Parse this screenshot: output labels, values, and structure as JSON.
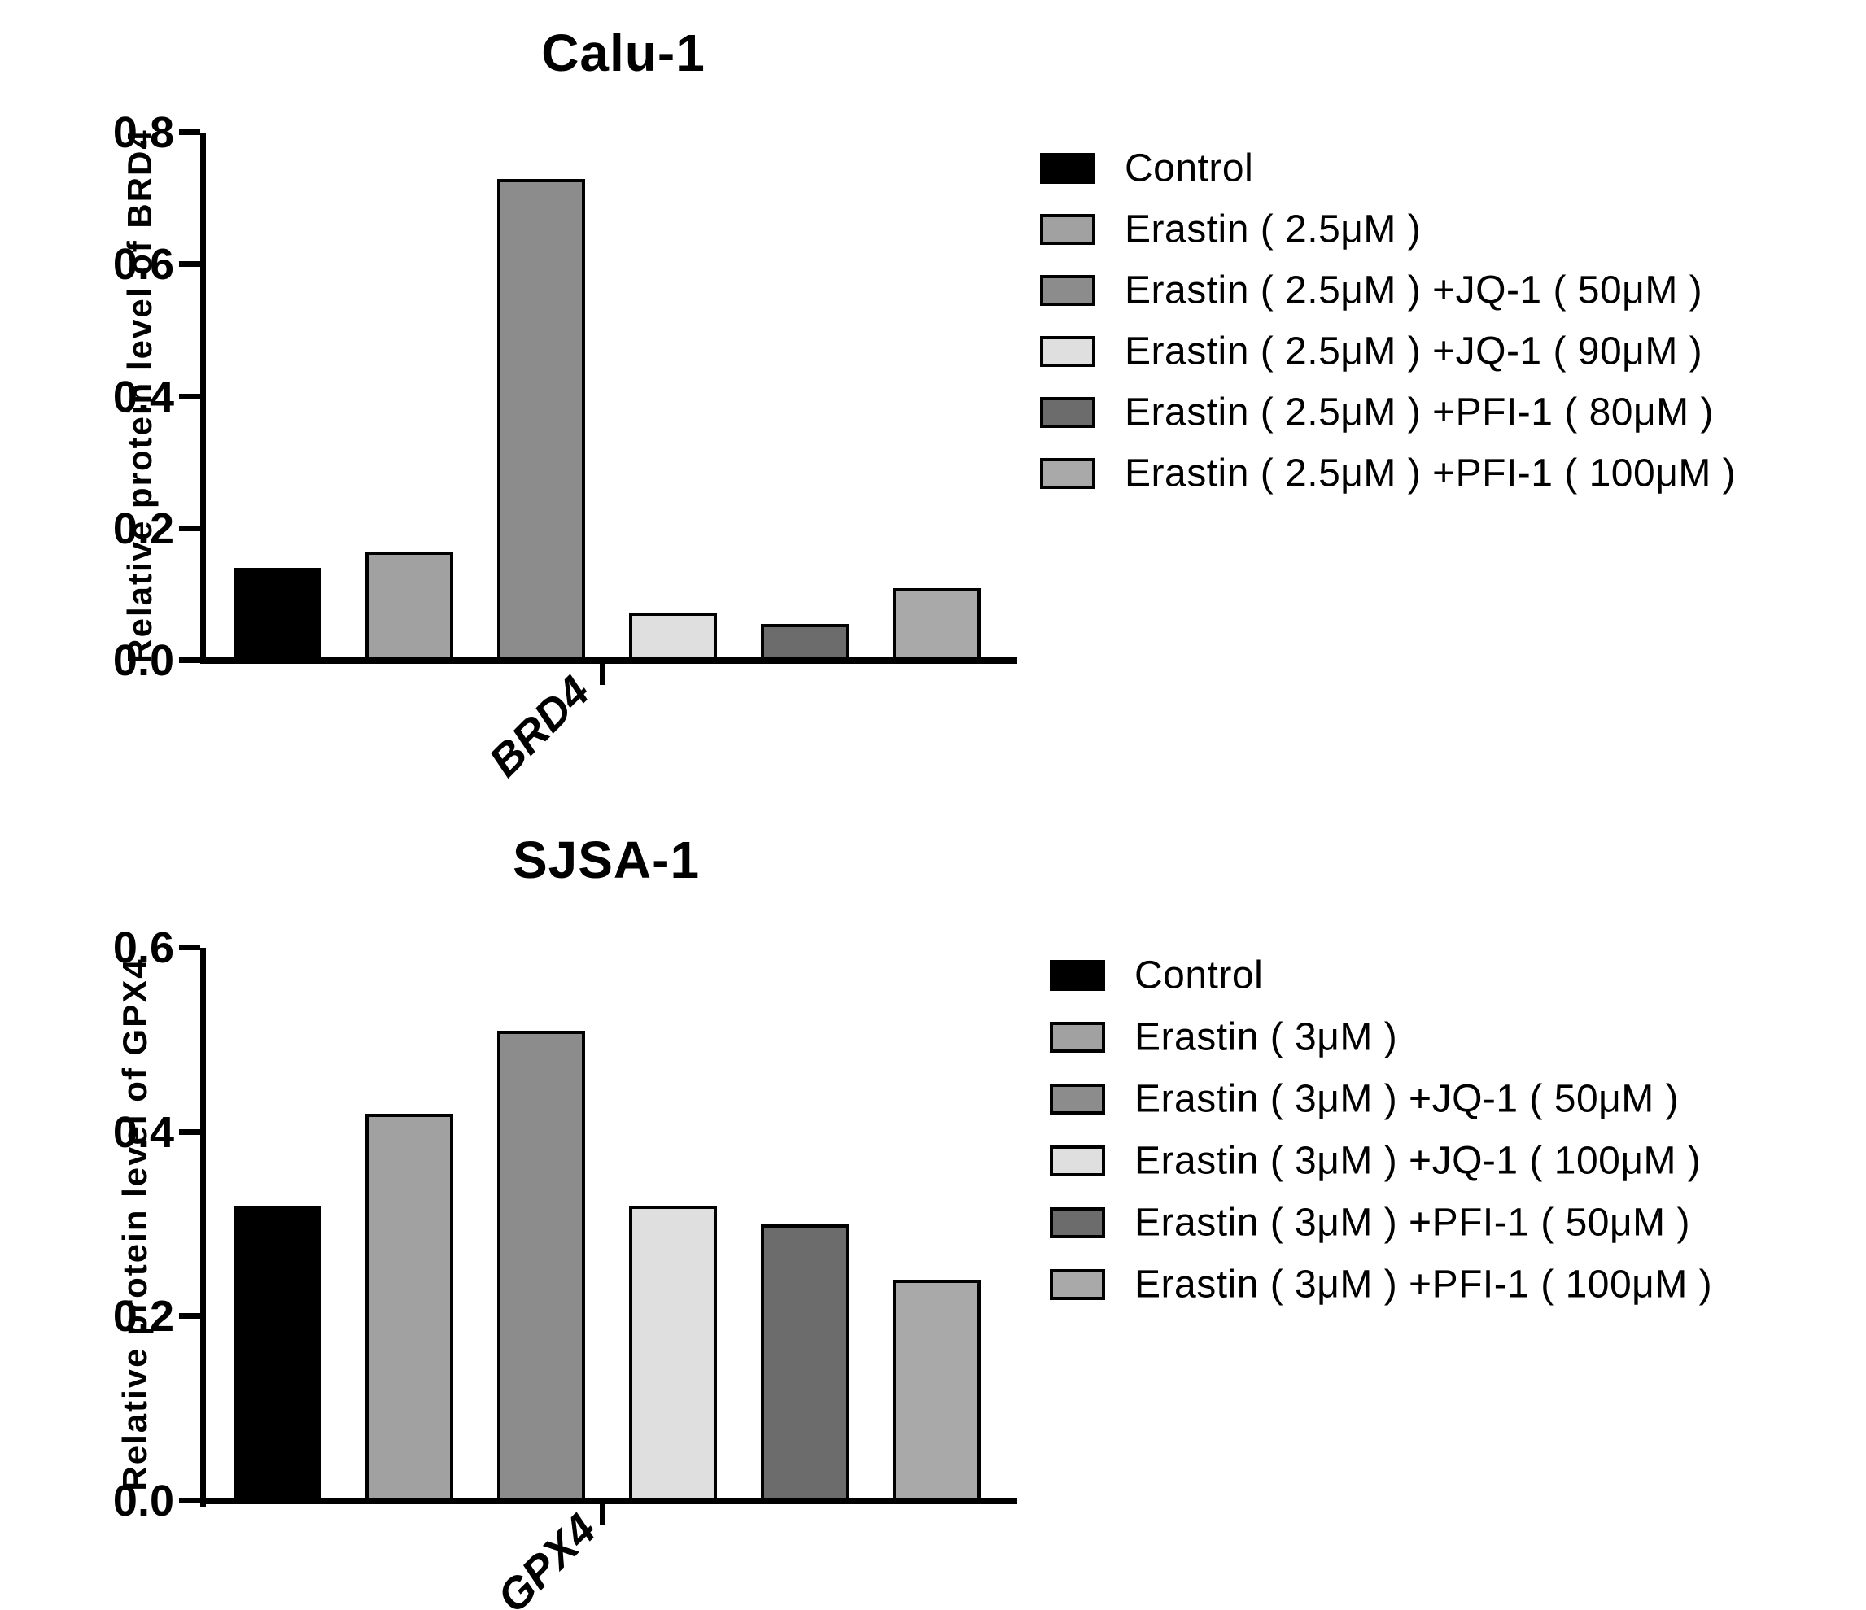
{
  "chart_data": [
    {
      "type": "bar",
      "title": "Calu-1",
      "ylabel": "Relative protein level of BRD4",
      "xlabel": "",
      "categories": [
        "BRD4"
      ],
      "ylim": [
        0,
        0.8
      ],
      "yticks": [
        "0.0",
        "0.2",
        "0.4",
        "0.6",
        "0.8"
      ],
      "grid": false,
      "legend_position": "right",
      "series": [
        {
          "name": "Control",
          "values": [
            0.14
          ],
          "color": "#000000"
        },
        {
          "name": "Erastin ( 2.5μM )",
          "values": [
            0.165
          ],
          "color": "#A1A1A1"
        },
        {
          "name": "Erastin ( 2.5μM ) +JQ-1 ( 50μM )",
          "values": [
            0.73
          ],
          "color": "#8C8C8C"
        },
        {
          "name": "Erastin ( 2.5μM ) +JQ-1 ( 90μM )",
          "values": [
            0.073
          ],
          "color": "#DFDFDF"
        },
        {
          "name": "Erastin ( 2.5μM ) +PFI-1 ( 80μM )",
          "values": [
            0.055
          ],
          "color": "#6C6C6C"
        },
        {
          "name": "Erastin ( 2.5μM ) +PFI-1 ( 100μM )",
          "values": [
            0.11
          ],
          "color": "#A9A9A9"
        }
      ]
    },
    {
      "type": "bar",
      "title": "SJSA-1",
      "ylabel": "Relative protein level of GPX4",
      "xlabel": "",
      "categories": [
        "GPX4"
      ],
      "ylim": [
        0,
        0.6
      ],
      "yticks": [
        "0.0",
        "0.2",
        "0.4",
        "0.6"
      ],
      "grid": false,
      "legend_position": "right",
      "series": [
        {
          "name": "Control",
          "values": [
            0.32
          ],
          "color": "#000000"
        },
        {
          "name": "Erastin ( 3μM )",
          "values": [
            0.42
          ],
          "color": "#A1A1A1"
        },
        {
          "name": "Erastin ( 3μM ) +JQ-1 ( 50μM )",
          "values": [
            0.51
          ],
          "color": "#8C8C8C"
        },
        {
          "name": "Erastin ( 3μM ) +JQ-1 ( 100μM )",
          "values": [
            0.32
          ],
          "color": "#DFDFDF"
        },
        {
          "name": "Erastin ( 3μM ) +PFI-1 ( 50μM )",
          "values": [
            0.3
          ],
          "color": "#6C6C6C"
        },
        {
          "name": "Erastin ( 3μM ) +PFI-1 ( 100μM )",
          "values": [
            0.24
          ],
          "color": "#A9A9A9"
        }
      ]
    }
  ],
  "colors": {
    "foreground": "#000000",
    "background": "#ffffff"
  }
}
